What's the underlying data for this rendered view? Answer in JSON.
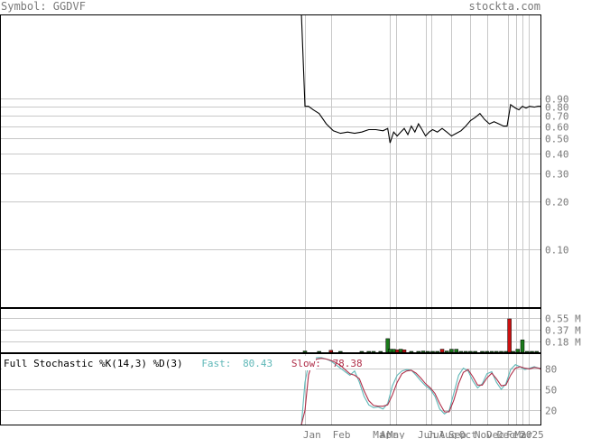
{
  "header": {
    "symbol_text": "Symbol: GGDVF",
    "site_text": "stockta.com"
  },
  "stochastic_panel": {
    "title": "Full Stochastic %K(14,3) %D(3)",
    "fast_label": "Fast:",
    "fast_value": "80.43",
    "slow_label": "Slow:",
    "slow_value": "78.38"
  },
  "colors": {
    "price": "#000000",
    "volume_up": "#1a7a1a",
    "volume_down": "#cc1111",
    "fast": "#5fb8b8",
    "slow": "#b0304a",
    "grid": "#c8c8c8",
    "label": "#7a7a7a"
  },
  "chart_data": [
    {
      "type": "line",
      "name": "price",
      "scale": "log",
      "ylim": [
        0.0432,
        3.0
      ],
      "y_ticks": [
        0.9,
        0.8,
        0.7,
        0.6,
        0.5,
        0.4,
        0.3,
        0.2,
        0.1
      ],
      "y_tick_labels": [
        "0.90",
        "0.80",
        "0.70",
        "0.60",
        "0.50",
        "0.40",
        "0.30",
        "0.20",
        "0.10"
      ],
      "x_labels": [
        "Jan",
        "Feb",
        "Mar",
        "Apr",
        "May",
        "Jun",
        "Jul",
        "Aug",
        "Sep",
        "Oct",
        "Nov",
        "Dec",
        "Dec",
        "Feb",
        "Mar",
        "2025"
      ],
      "x_label_pos": [
        0.3,
        1.55,
        3.25,
        3.55,
        3.85,
        5.15,
        5.55,
        6.05,
        6.45,
        6.9,
        7.55,
        8.05,
        8.5,
        8.9,
        9.25,
        9.6
      ],
      "x_grid": [
        0,
        1.1,
        3.6,
        3.85,
        5.1,
        5.35,
        6.2,
        7.0,
        7.7,
        8.6,
        8.95,
        9.2,
        9.45
      ],
      "x_range": [
        0,
        10
      ],
      "x": [
        -0.15,
        0.0,
        0.15,
        0.35,
        0.6,
        0.9,
        1.2,
        1.5,
        1.8,
        2.1,
        2.4,
        2.7,
        3.0,
        3.3,
        3.5,
        3.6,
        3.75,
        3.9,
        4.05,
        4.2,
        4.35,
        4.5,
        4.65,
        4.8,
        4.95,
        5.1,
        5.25,
        5.4,
        5.6,
        5.8,
        6.0,
        6.2,
        6.4,
        6.6,
        6.8,
        7.0,
        7.2,
        7.4,
        7.6,
        7.8,
        8.0,
        8.2,
        8.4,
        8.55,
        8.7,
        8.9,
        9.05,
        9.2,
        9.35,
        9.5,
        9.7,
        9.85,
        10.0
      ],
      "y": [
        3.0,
        0.8,
        0.8,
        0.76,
        0.72,
        0.62,
        0.56,
        0.54,
        0.55,
        0.54,
        0.55,
        0.57,
        0.57,
        0.56,
        0.58,
        0.47,
        0.55,
        0.52,
        0.55,
        0.58,
        0.53,
        0.6,
        0.55,
        0.62,
        0.57,
        0.52,
        0.55,
        0.57,
        0.55,
        0.58,
        0.55,
        0.52,
        0.54,
        0.56,
        0.6,
        0.65,
        0.68,
        0.72,
        0.66,
        0.62,
        0.64,
        0.62,
        0.6,
        0.6,
        0.82,
        0.78,
        0.76,
        0.8,
        0.78,
        0.8,
        0.79,
        0.8,
        0.8
      ]
    },
    {
      "type": "bar",
      "name": "volume",
      "ylim": [
        0,
        0.7
      ],
      "y_ticks": [
        0.55,
        0.37,
        0.18
      ],
      "y_tick_labels": [
        "0.55 M",
        "0.37 M",
        "0.18 M"
      ],
      "x": [
        0.0,
        0.6,
        1.1,
        1.5,
        2.4,
        2.7,
        2.9,
        3.2,
        3.5,
        3.6,
        3.75,
        3.9,
        4.05,
        4.2,
        4.5,
        4.8,
        5.0,
        5.2,
        5.4,
        5.6,
        5.8,
        6.0,
        6.2,
        6.4,
        6.6,
        6.8,
        7.0,
        7.2,
        7.5,
        7.7,
        7.9,
        8.1,
        8.3,
        8.5,
        8.65,
        8.8,
        9.0,
        9.2,
        9.4,
        9.6,
        9.8
      ],
      "values": [
        0.02,
        0.01,
        0.03,
        0.015,
        0.01,
        0.015,
        0.01,
        0.01,
        0.22,
        0.05,
        0.05,
        0.04,
        0.05,
        0.04,
        0.01,
        0.01,
        0.02,
        0.01,
        0.015,
        0.01,
        0.05,
        0.02,
        0.05,
        0.05,
        0.01,
        0.01,
        0.01,
        0.015,
        0.01,
        0.01,
        0.01,
        0.01,
        0.015,
        0.01,
        0.54,
        0.01,
        0.05,
        0.2,
        0.01,
        0.01,
        0.01
      ],
      "direction": [
        "up",
        "up",
        "down",
        "up",
        "up",
        "up",
        "up",
        "up",
        "up",
        "up",
        "up",
        "down",
        "up",
        "down",
        "up",
        "up",
        "up",
        "up",
        "up",
        "up",
        "down",
        "up",
        "up",
        "up",
        "up",
        "up",
        "up",
        "up",
        "up",
        "up",
        "up",
        "up",
        "up",
        "up",
        "down",
        "up",
        "up",
        "up",
        "up",
        "up",
        "up"
      ]
    },
    {
      "type": "line",
      "name": "stochastic",
      "ylim": [
        0,
        100
      ],
      "y_ticks": [
        80,
        50,
        20
      ],
      "y_tick_labels": [
        "80",
        "50",
        "20"
      ],
      "x": [
        -0.15,
        0.0,
        0.15,
        0.3,
        0.5,
        0.7,
        0.9,
        1.1,
        1.3,
        1.5,
        1.7,
        1.9,
        2.1,
        2.3,
        2.5,
        2.7,
        2.9,
        3.1,
        3.3,
        3.5,
        3.7,
        3.9,
        4.1,
        4.3,
        4.5,
        4.7,
        4.9,
        5.1,
        5.3,
        5.5,
        5.7,
        5.9,
        6.1,
        6.3,
        6.5,
        6.7,
        6.9,
        7.1,
        7.3,
        7.5,
        7.7,
        7.9,
        8.1,
        8.3,
        8.5,
        8.7,
        8.9,
        9.1,
        9.3,
        9.5,
        9.7,
        9.9,
        10.0
      ],
      "series": [
        {
          "name": "Fast",
          "values": [
            0,
            60,
            85,
            92,
            95,
            95,
            93,
            90,
            85,
            80,
            75,
            70,
            76,
            60,
            40,
            28,
            24,
            25,
            22,
            30,
            55,
            70,
            76,
            78,
            77,
            70,
            62,
            55,
            50,
            40,
            22,
            15,
            20,
            45,
            70,
            80,
            76,
            62,
            52,
            58,
            72,
            75,
            60,
            50,
            58,
            78,
            85,
            82,
            78,
            80,
            82,
            80,
            80
          ]
        },
        {
          "name": "Slow",
          "values": [
            0,
            20,
            70,
            88,
            93,
            94,
            93,
            91,
            88,
            84,
            78,
            72,
            70,
            65,
            48,
            34,
            27,
            26,
            26,
            28,
            42,
            60,
            72,
            76,
            77,
            73,
            66,
            58,
            52,
            44,
            30,
            18,
            18,
            35,
            58,
            74,
            78,
            68,
            56,
            56,
            66,
            73,
            65,
            55,
            56,
            70,
            80,
            82,
            80,
            79,
            81,
            80,
            78
          ]
        }
      ]
    }
  ]
}
